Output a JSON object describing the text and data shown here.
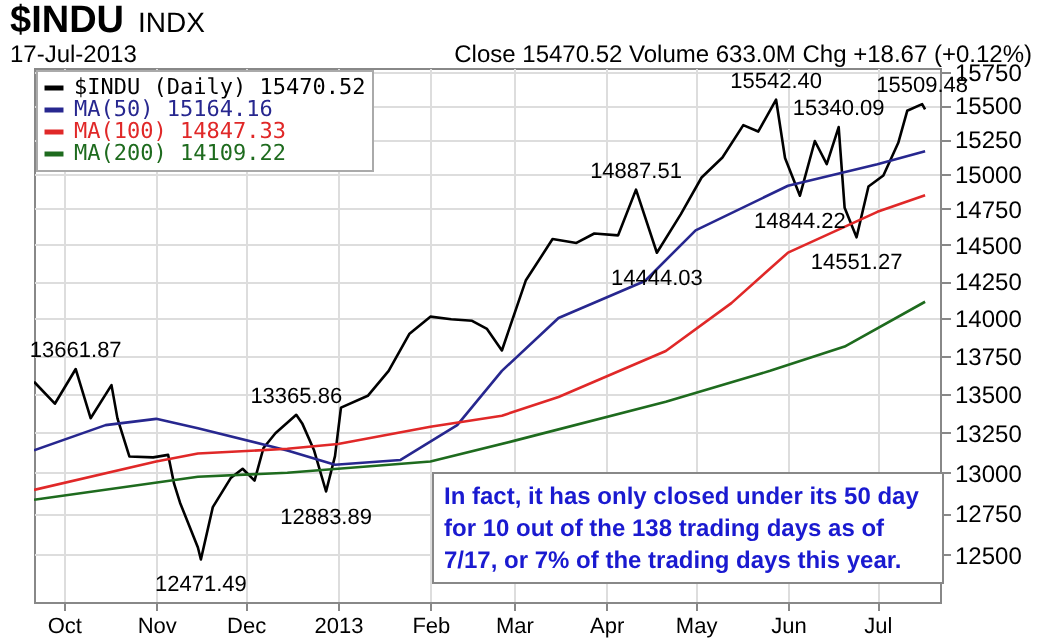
{
  "chart_data": {
    "type": "line",
    "title": "$INDU",
    "subtitle": "17-Jul-2013",
    "annotations": [
      "INDX",
      "Close 15470.52 Volume 633.0M Chg +18.67 (+0.12%)",
      {
        "text": "13661.87",
        "x": "2012-10-05",
        "y": 13661.87
      },
      {
        "text": "12471.49",
        "x": "2012-11-16",
        "y": 12471.49
      },
      {
        "text": "13365.86",
        "x": "2012-12-18",
        "y": 13365.86
      },
      {
        "text": "12883.89",
        "x": "2012-12-28",
        "y": 12883.89
      },
      {
        "text": "14887.51",
        "x": "2013-04-11",
        "y": 14887.51
      },
      {
        "text": "14444.03",
        "x": "2013-04-18",
        "y": 14444.03
      },
      {
        "text": "15542.40",
        "x": "2013-05-28",
        "y": 15542.4
      },
      {
        "text": "14844.22",
        "x": "2013-06-05",
        "y": 14844.22
      },
      {
        "text": "15340.09",
        "x": "2013-06-18",
        "y": 15340.09
      },
      {
        "text": "14551.27",
        "x": "2013-06-24",
        "y": 14551.27
      },
      {
        "text": "15509.48",
        "x": "2013-07-16",
        "y": 15509.48
      },
      "In fact, it has only closed under its 50 day for 10 out of the 138 trading days as of 7/17, or 7% of the trading days this year."
    ],
    "series": [
      {
        "name": "$INDU (Daily) 15470.52",
        "color": "#000000",
        "x": [
          "2012-09-21",
          "2012-09-28",
          "2012-10-05",
          "2012-10-10",
          "2012-10-17",
          "2012-10-19",
          "2012-10-23",
          "2012-10-31",
          "2012-11-05",
          "2012-11-07",
          "2012-11-09",
          "2012-11-15",
          "2012-11-16",
          "2012-11-20",
          "2012-11-26",
          "2012-11-30",
          "2012-12-04",
          "2012-12-07",
          "2012-12-11",
          "2012-12-18",
          "2012-12-20",
          "2012-12-24",
          "2012-12-28",
          "2012-12-31",
          "2013-01-02",
          "2013-01-11",
          "2013-01-18",
          "2013-01-25",
          "2013-02-01",
          "2013-02-08",
          "2013-02-15",
          "2013-02-20",
          "2013-02-25",
          "2013-03-05",
          "2013-03-14",
          "2013-03-22",
          "2013-03-28",
          "2013-04-05",
          "2013-04-11",
          "2013-04-18",
          "2013-04-26",
          "2013-05-03",
          "2013-05-10",
          "2013-05-17",
          "2013-05-22",
          "2013-05-28",
          "2013-05-31",
          "2013-06-05",
          "2013-06-10",
          "2013-06-14",
          "2013-06-18",
          "2013-06-20",
          "2013-06-24",
          "2013-06-28",
          "2013-07-03",
          "2013-07-08",
          "2013-07-11",
          "2013-07-16",
          "2013-07-17"
        ],
        "values": [
          13579,
          13437,
          13661.87,
          13344,
          13557,
          13343,
          13102,
          13096,
          13112,
          12932,
          12815,
          12543,
          12471.49,
          12788,
          12967,
          13025,
          12951,
          13155,
          13248,
          13365.86,
          13311,
          13139,
          12883.89,
          13104,
          13412,
          13488,
          13650,
          13895,
          14009,
          13992,
          13981,
          13927,
          13784,
          14253,
          14539,
          14512,
          14578,
          14565,
          14887.51,
          14444.03,
          14712,
          14974,
          15118,
          15354,
          15307,
          15542.4,
          15115,
          14844.22,
          15238,
          15070,
          15340.09,
          14758,
          14551.27,
          14910,
          14988,
          15225,
          15460,
          15509.48,
          15470.52
        ]
      },
      {
        "name": "MA(50) 15164.16",
        "color": "#27278f",
        "x": [
          "2012-09-21",
          "2012-10-15",
          "2012-11-01",
          "2012-11-15",
          "2012-12-15",
          "2012-12-31",
          "2013-01-22",
          "2013-02-10",
          "2013-02-25",
          "2013-03-16",
          "2013-04-14",
          "2013-05-01",
          "2013-06-01",
          "2013-07-01",
          "2013-07-17"
        ],
        "values": [
          13140,
          13300,
          13340,
          13280,
          13140,
          13050,
          13080,
          13300,
          13650,
          14000,
          14250,
          14600,
          14915,
          15070,
          15164.16
        ]
      },
      {
        "name": "MA(100) 14847.33",
        "color": "#e02828",
        "x": [
          "2012-09-21",
          "2012-11-01",
          "2012-11-15",
          "2012-12-15",
          "2013-01-01",
          "2013-02-01",
          "2013-02-25",
          "2013-03-16",
          "2013-04-21",
          "2013-05-13",
          "2013-06-01",
          "2013-07-01",
          "2013-07-17"
        ],
        "values": [
          12894,
          13070,
          13120,
          13150,
          13180,
          13290,
          13360,
          13480,
          13780,
          14100,
          14445,
          14730,
          14847.33
        ]
      },
      {
        "name": "MA(200) 14109.22",
        "color": "#1e6b1e",
        "x": [
          "2012-09-21",
          "2012-11-15",
          "2012-12-15",
          "2013-01-01",
          "2013-02-01",
          "2013-03-01",
          "2013-04-21",
          "2013-05-26",
          "2013-06-20",
          "2013-07-17"
        ],
        "values": [
          12833,
          12975,
          13000,
          13025,
          13070,
          13200,
          13450,
          13650,
          13810,
          14109.22
        ]
      }
    ],
    "xlim": [
      "2012-09-21",
      "2013-07-22"
    ],
    "xticks": [
      {
        "value": "2012-10-01",
        "label": "Oct"
      },
      {
        "value": "2012-11-01",
        "label": "Nov"
      },
      {
        "value": "2012-12-01",
        "label": "Dec"
      },
      {
        "value": "2013-01-01",
        "label": "2013"
      },
      {
        "value": "2013-02-01",
        "label": "Feb"
      },
      {
        "value": "2013-03-01",
        "label": "Mar"
      },
      {
        "value": "2013-04-01",
        "label": "Apr"
      },
      {
        "value": "2013-05-01",
        "label": "May"
      },
      {
        "value": "2013-06-01",
        "label": "Jun"
      },
      {
        "value": "2013-07-01",
        "label": "Jul"
      }
    ],
    "ylim": [
      12220,
      15780
    ],
    "yticks": [
      12500,
      12750,
      13000,
      13250,
      13500,
      13750,
      14000,
      14250,
      14500,
      14750,
      15000,
      15250,
      15500,
      15750
    ],
    "log": true,
    "grid": true,
    "legend": "top left",
    "marker": "none",
    "line_style": "solid"
  }
}
